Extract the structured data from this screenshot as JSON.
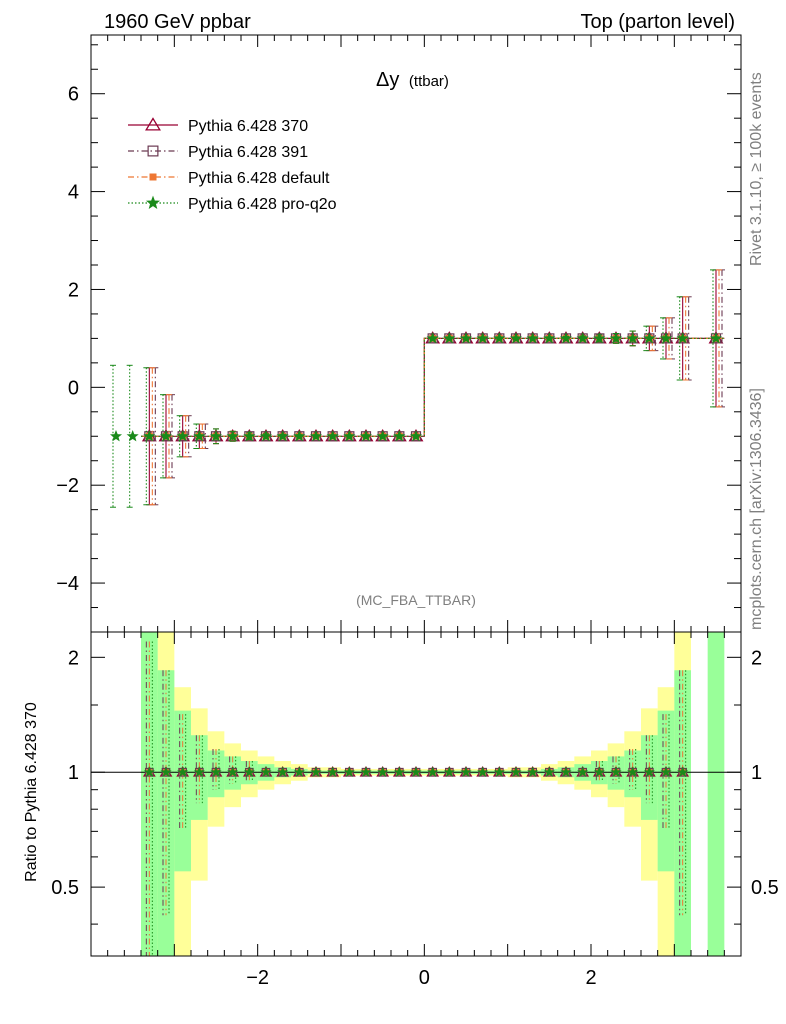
{
  "chart_data": {
    "type": "scatter",
    "header_left": "1960 GeV ppbar",
    "header_right": "Top (parton level)",
    "title_main": "Δy",
    "title_sub": "(ttbar)",
    "analysis_id": "(MC_FBA_TTBAR)",
    "side_label_top": "Rivet 3.1.10, ≥ 100k events",
    "side_label_bottom": "mcplots.cern.ch [arXiv:1306.3436]",
    "ratio_ylabel": "Ratio to Pythia 6.428 370",
    "xlim": [
      -4.0,
      3.8
    ],
    "main_ylim": [
      -5.0,
      7.2
    ],
    "ratio_ylim": [
      0.33,
      2.33
    ],
    "main_yticks": [
      -4,
      -2,
      0,
      2,
      4,
      6
    ],
    "ratio_yticks": [
      0.5,
      1,
      2
    ],
    "xticks": [
      -2,
      0,
      2
    ],
    "legend": [
      {
        "name": "Pythia 6.428 370",
        "color": "#990033",
        "marker": "triangle",
        "dash": "solid"
      },
      {
        "name": "Pythia 6.428 391",
        "color": "#6b3a52",
        "marker": "square",
        "dash": "dashdot"
      },
      {
        "name": "Pythia 6.428 default",
        "color": "#ee7733",
        "marker": "filled-square",
        "dash": "dashdot"
      },
      {
        "name": "Pythia 6.428 pro-q2o",
        "color": "#1a8a1a",
        "marker": "star",
        "dash": "dotted"
      }
    ],
    "bin_width": 0.2,
    "main_bins": [
      {
        "x": -3.3,
        "y": -1,
        "err": 1.4
      },
      {
        "x": -3.1,
        "y": -1,
        "err": 0.85
      },
      {
        "x": -2.9,
        "y": -1,
        "err": 0.42
      },
      {
        "x": -2.7,
        "y": -1,
        "err": 0.25
      },
      {
        "x": -2.5,
        "y": -1,
        "err": 0.15
      },
      {
        "x": -2.3,
        "y": -1,
        "err": 0.1
      },
      {
        "x": -2.1,
        "y": -1,
        "err": 0.07
      },
      {
        "x": -1.9,
        "y": -1,
        "err": 0.05
      },
      {
        "x": -1.7,
        "y": -1,
        "err": 0.04
      },
      {
        "x": -1.5,
        "y": -1,
        "err": 0.03
      },
      {
        "x": -1.3,
        "y": -1,
        "err": 0.02
      },
      {
        "x": -1.1,
        "y": -1,
        "err": 0.02
      },
      {
        "x": -0.9,
        "y": -1,
        "err": 0.02
      },
      {
        "x": -0.7,
        "y": -1,
        "err": 0.02
      },
      {
        "x": -0.5,
        "y": -1,
        "err": 0.02
      },
      {
        "x": -0.3,
        "y": -1,
        "err": 0.02
      },
      {
        "x": -0.1,
        "y": -1,
        "err": 0.02
      },
      {
        "x": 0.1,
        "y": 1,
        "err": 0.02
      },
      {
        "x": 0.3,
        "y": 1,
        "err": 0.02
      },
      {
        "x": 0.5,
        "y": 1,
        "err": 0.02
      },
      {
        "x": 0.7,
        "y": 1,
        "err": 0.02
      },
      {
        "x": 0.9,
        "y": 1,
        "err": 0.02
      },
      {
        "x": 1.1,
        "y": 1,
        "err": 0.02
      },
      {
        "x": 1.3,
        "y": 1,
        "err": 0.02
      },
      {
        "x": 1.5,
        "y": 1,
        "err": 0.03
      },
      {
        "x": 1.7,
        "y": 1,
        "err": 0.04
      },
      {
        "x": 1.9,
        "y": 1,
        "err": 0.05
      },
      {
        "x": 2.1,
        "y": 1,
        "err": 0.07
      },
      {
        "x": 2.3,
        "y": 1,
        "err": 0.1
      },
      {
        "x": 2.5,
        "y": 1,
        "err": 0.15
      },
      {
        "x": 2.7,
        "y": 1,
        "err": 0.25
      },
      {
        "x": 2.9,
        "y": 1,
        "err": 0.42
      },
      {
        "x": 3.1,
        "y": 1,
        "err": 0.85
      },
      {
        "x": 3.5,
        "y": 1,
        "err": 1.4
      }
    ],
    "pro_q2o_extra": [
      {
        "x": -3.7,
        "y": -1,
        "err": 1.45
      },
      {
        "x": -3.5,
        "y": -1,
        "err": 1.45
      }
    ],
    "ratio_green": [
      {
        "x0": -3.4,
        "x1": -3.2,
        "lo": 0.33,
        "hi": 2.33
      },
      {
        "x0": -3.2,
        "x1": -3.0,
        "lo": 0.33,
        "hi": 1.85
      },
      {
        "x0": -3.0,
        "x1": -2.8,
        "lo": 0.55,
        "hi": 1.45
      },
      {
        "x0": -2.8,
        "x1": -2.6,
        "lo": 0.75,
        "hi": 1.25
      },
      {
        "x0": -2.6,
        "x1": -2.4,
        "lo": 0.86,
        "hi": 1.14
      },
      {
        "x0": -2.4,
        "x1": -2.2,
        "lo": 0.9,
        "hi": 1.1
      },
      {
        "x0": -2.2,
        "x1": -2.0,
        "lo": 0.93,
        "hi": 1.07
      },
      {
        "x0": -2.0,
        "x1": -1.8,
        "lo": 0.95,
        "hi": 1.05
      },
      {
        "x0": -1.8,
        "x1": -1.6,
        "lo": 0.97,
        "hi": 1.03
      },
      {
        "x0": -1.6,
        "x1": -1.4,
        "lo": 0.98,
        "hi": 1.02
      },
      {
        "x0": -1.4,
        "x1": 1.4,
        "lo": 0.99,
        "hi": 1.01
      },
      {
        "x0": 1.4,
        "x1": 1.6,
        "lo": 0.98,
        "hi": 1.02
      },
      {
        "x0": 1.6,
        "x1": 1.8,
        "lo": 0.97,
        "hi": 1.03
      },
      {
        "x0": 1.8,
        "x1": 2.0,
        "lo": 0.95,
        "hi": 1.05
      },
      {
        "x0": 2.0,
        "x1": 2.2,
        "lo": 0.93,
        "hi": 1.07
      },
      {
        "x0": 2.2,
        "x1": 2.4,
        "lo": 0.9,
        "hi": 1.1
      },
      {
        "x0": 2.4,
        "x1": 2.6,
        "lo": 0.86,
        "hi": 1.14
      },
      {
        "x0": 2.6,
        "x1": 2.8,
        "lo": 0.75,
        "hi": 1.25
      },
      {
        "x0": 2.8,
        "x1": 3.0,
        "lo": 0.55,
        "hi": 1.45
      },
      {
        "x0": 3.0,
        "x1": 3.2,
        "lo": 0.33,
        "hi": 1.85
      },
      {
        "x0": 3.4,
        "x1": 3.6,
        "lo": 0.33,
        "hi": 2.33
      }
    ],
    "ratio_yellow": [
      {
        "x0": -3.4,
        "x1": -3.2,
        "lo": 0.33,
        "hi": 2.33
      },
      {
        "x0": -3.2,
        "x1": -3.0,
        "lo": 0.33,
        "hi": 2.33
      },
      {
        "x0": -3.0,
        "x1": -2.8,
        "lo": 0.33,
        "hi": 1.67
      },
      {
        "x0": -2.8,
        "x1": -2.6,
        "lo": 0.52,
        "hi": 1.47
      },
      {
        "x0": -2.6,
        "x1": -2.4,
        "lo": 0.72,
        "hi": 1.28
      },
      {
        "x0": -2.4,
        "x1": -2.2,
        "lo": 0.81,
        "hi": 1.19
      },
      {
        "x0": -2.2,
        "x1": -2.0,
        "lo": 0.86,
        "hi": 1.14
      },
      {
        "x0": -2.0,
        "x1": -1.8,
        "lo": 0.9,
        "hi": 1.1
      },
      {
        "x0": -1.8,
        "x1": -1.6,
        "lo": 0.93,
        "hi": 1.07
      },
      {
        "x0": -1.6,
        "x1": -1.4,
        "lo": 0.95,
        "hi": 1.05
      },
      {
        "x0": -1.4,
        "x1": -1.0,
        "lo": 0.97,
        "hi": 1.03
      },
      {
        "x0": -1.0,
        "x1": 1.0,
        "lo": 0.98,
        "hi": 1.02
      },
      {
        "x0": 1.0,
        "x1": 1.4,
        "lo": 0.97,
        "hi": 1.03
      },
      {
        "x0": 1.4,
        "x1": 1.6,
        "lo": 0.95,
        "hi": 1.05
      },
      {
        "x0": 1.6,
        "x1": 1.8,
        "lo": 0.93,
        "hi": 1.07
      },
      {
        "x0": 1.8,
        "x1": 2.0,
        "lo": 0.9,
        "hi": 1.1
      },
      {
        "x0": 2.0,
        "x1": 2.2,
        "lo": 0.86,
        "hi": 1.14
      },
      {
        "x0": 2.2,
        "x1": 2.4,
        "lo": 0.81,
        "hi": 1.19
      },
      {
        "x0": 2.4,
        "x1": 2.6,
        "lo": 0.72,
        "hi": 1.28
      },
      {
        "x0": 2.6,
        "x1": 2.8,
        "lo": 0.52,
        "hi": 1.47
      },
      {
        "x0": 2.8,
        "x1": 3.0,
        "lo": 0.33,
        "hi": 1.67
      },
      {
        "x0": 3.0,
        "x1": 3.2,
        "lo": 0.33,
        "hi": 2.33
      }
    ],
    "colors": {
      "green_band": "#99ff99",
      "yellow_band": "#ffff99",
      "axis": "#000000"
    }
  }
}
